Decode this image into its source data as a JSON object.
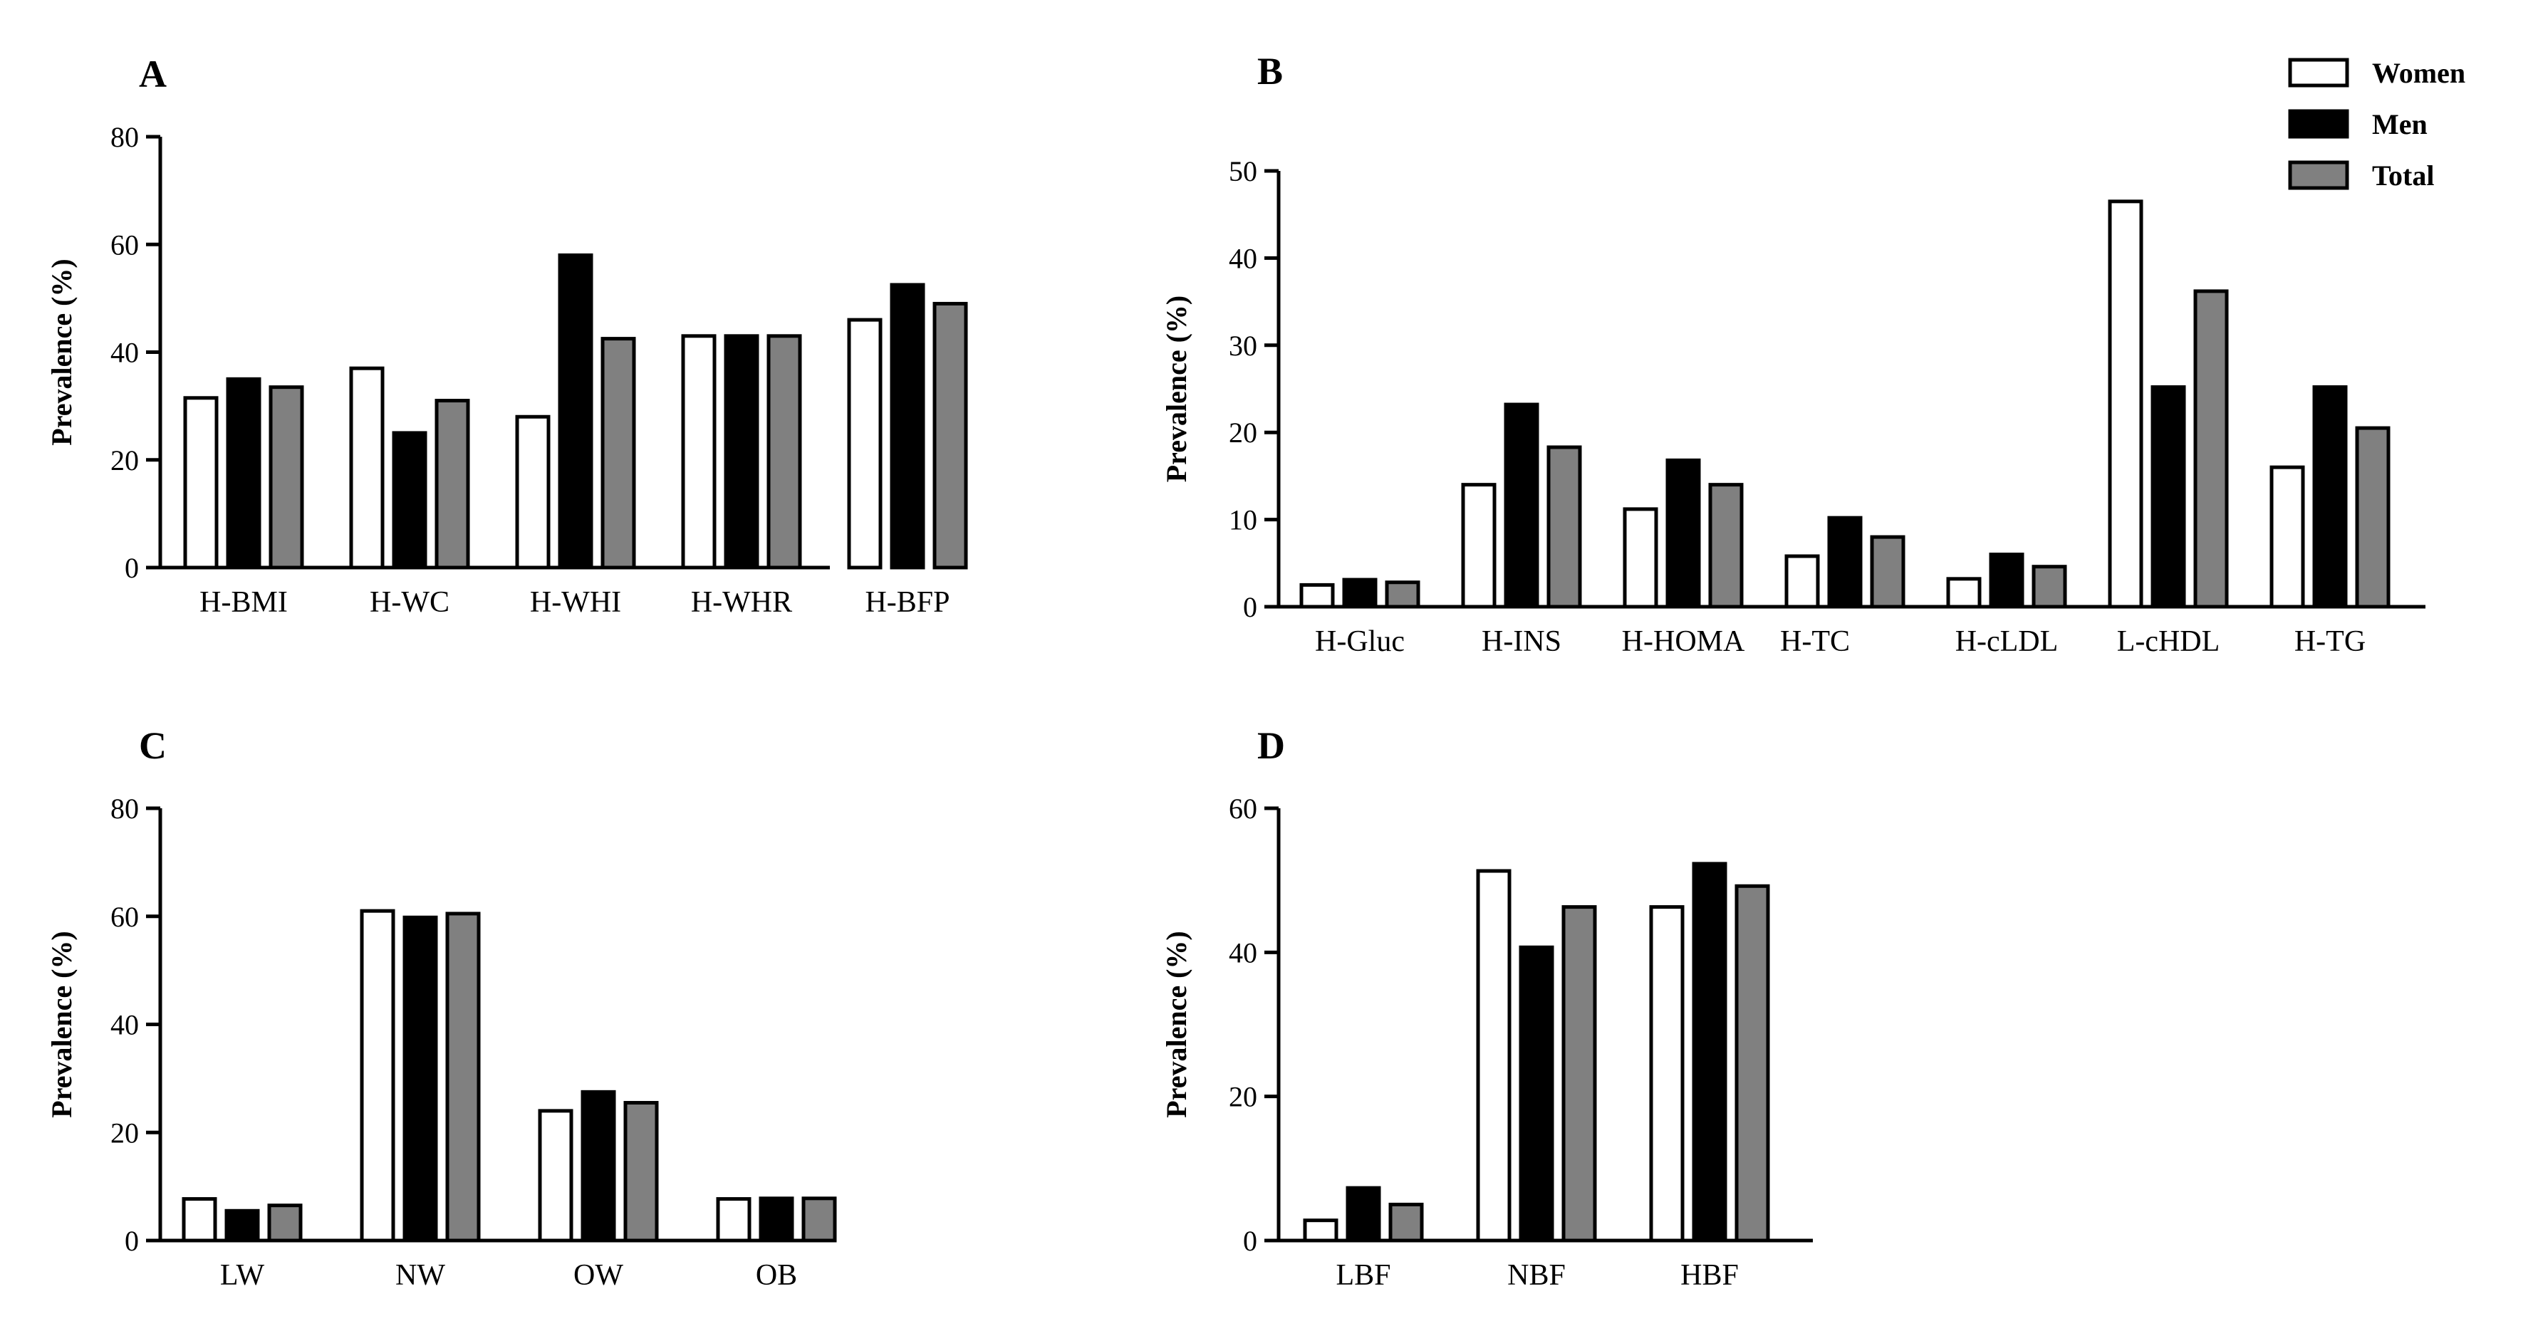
{
  "legend": [
    {
      "name": "Women",
      "color": "#ffffff"
    },
    {
      "name": "Men",
      "color": "#000000"
    },
    {
      "name": "Total",
      "color": "#808080"
    }
  ],
  "chart_data": [
    {
      "panel": "A",
      "type": "bar",
      "title": "",
      "xlabel": "",
      "ylabel": "Prevalence (%)",
      "ylim": [
        0,
        80
      ],
      "yticks": [
        0,
        20,
        40,
        60,
        80
      ],
      "categories": [
        "H-BMI",
        "H-WC",
        "H-WHI",
        "H-WHR",
        "H-BFP"
      ],
      "series": [
        {
          "name": "Women",
          "values": [
            31.5,
            37,
            28,
            43,
            46
          ]
        },
        {
          "name": "Men",
          "values": [
            35,
            25,
            58,
            43,
            52.5
          ]
        },
        {
          "name": "Total",
          "values": [
            33.5,
            31,
            42.5,
            43,
            49
          ]
        }
      ]
    },
    {
      "panel": "B",
      "type": "bar",
      "title": "",
      "xlabel": "",
      "ylabel": "Prevalence (%)",
      "ylim": [
        0,
        50
      ],
      "yticks": [
        0,
        10,
        20,
        30,
        40,
        50
      ],
      "categories": [
        "H-Gluc",
        "H-INS",
        "H-HOMA",
        "H-TC",
        "H-cLDL",
        "L-cHDL",
        "H-TG"
      ],
      "series": [
        {
          "name": "Women",
          "values": [
            2.5,
            14,
            11.2,
            5.8,
            3.2,
            46.5,
            16
          ]
        },
        {
          "name": "Men",
          "values": [
            3.1,
            23.2,
            16.8,
            10.2,
            6,
            25.2,
            25.2
          ]
        },
        {
          "name": "Total",
          "values": [
            2.8,
            18.3,
            14,
            8,
            4.6,
            36.2,
            20.5
          ]
        }
      ]
    },
    {
      "panel": "C",
      "type": "bar",
      "title": "",
      "xlabel": "",
      "ylabel": "Prevalence (%)",
      "ylim": [
        0,
        80
      ],
      "yticks": [
        0,
        20,
        40,
        60,
        80
      ],
      "categories": [
        "LW",
        "NW",
        "OW",
        "OB"
      ],
      "series": [
        {
          "name": "Women",
          "values": [
            7.7,
            61,
            24,
            7.7
          ]
        },
        {
          "name": "Men",
          "values": [
            5.5,
            59.8,
            27.5,
            7.8
          ]
        },
        {
          "name": "Total",
          "values": [
            6.5,
            60.5,
            25.5,
            7.8
          ]
        }
      ]
    },
    {
      "panel": "D",
      "type": "bar",
      "title": "",
      "xlabel": "",
      "ylabel": "Prevalence (%)",
      "ylim": [
        0,
        60
      ],
      "yticks": [
        0,
        20,
        40,
        60
      ],
      "categories": [
        "LBF",
        "NBF",
        "HBF"
      ],
      "series": [
        {
          "name": "Women",
          "values": [
            2.8,
            51.3,
            46.3
          ]
        },
        {
          "name": "Men",
          "values": [
            7.3,
            40.7,
            52.3
          ]
        },
        {
          "name": "Total",
          "values": [
            5,
            46.3,
            49.2
          ]
        }
      ]
    }
  ]
}
